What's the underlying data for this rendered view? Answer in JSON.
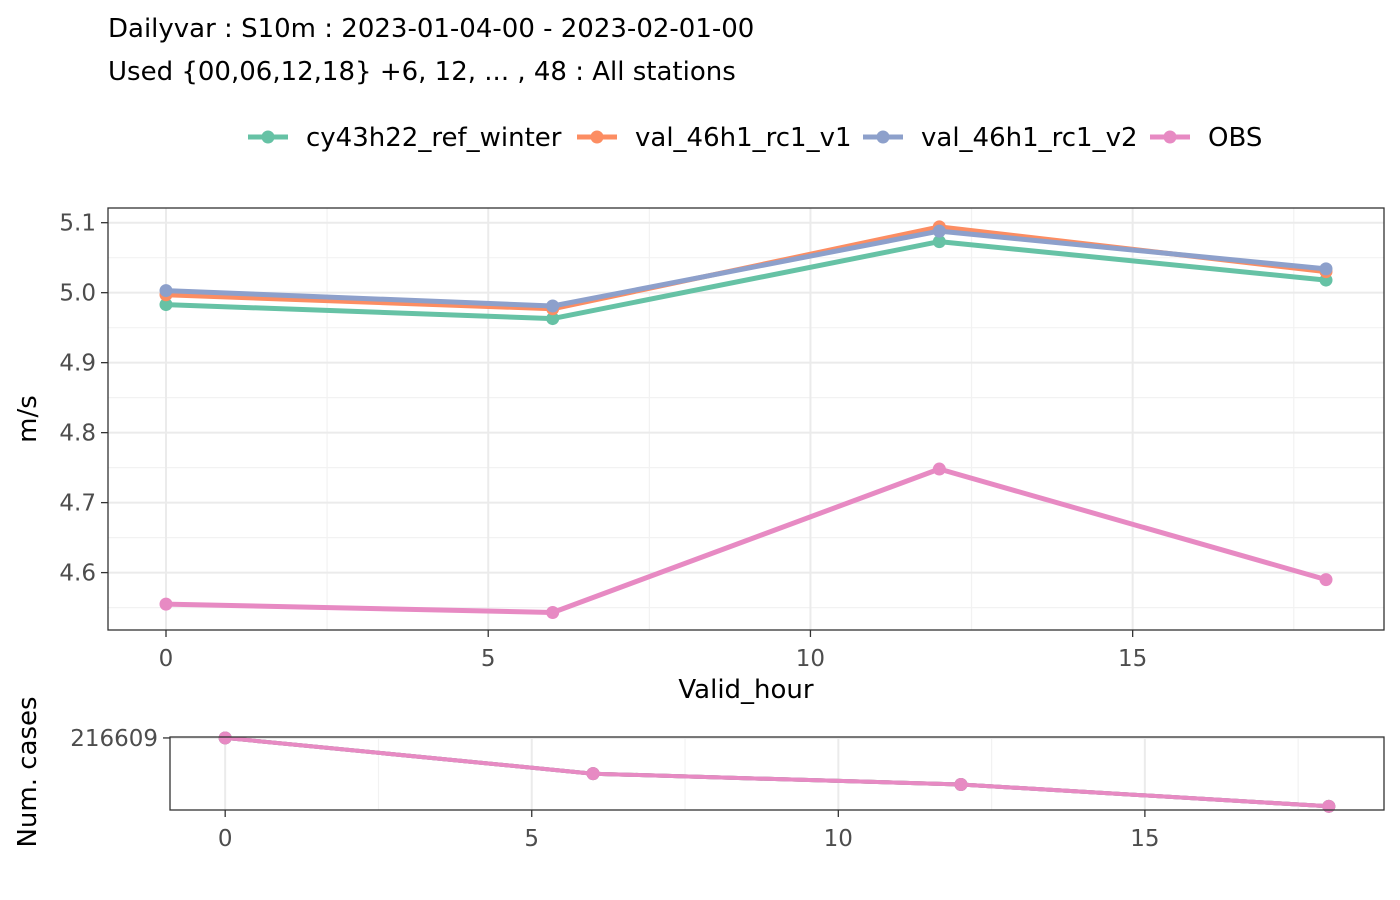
{
  "title": {
    "line1": "Dailyvar : S10m : 2023-01-04-00 - 2023-02-01-00",
    "line2": "Used {00,06,12,18} +6, 12, ... , 48 : All stations"
  },
  "chart_data": [
    {
      "type": "line",
      "x": [
        0,
        6,
        12,
        18
      ],
      "xlabel": "Valid_hour",
      "ylabel": "m/s",
      "xlim": [
        -0.9,
        18.9
      ],
      "ylim": [
        4.518,
        5.121
      ],
      "xticks": [
        0,
        5,
        10,
        15
      ],
      "yticks": [
        4.6,
        4.7,
        4.8,
        4.9,
        5.0,
        5.1
      ],
      "ytick_labels": [
        "4.6",
        "4.7",
        "4.8",
        "4.9",
        "5.0",
        "5.1"
      ],
      "grid": true,
      "legend_position": "top",
      "series": [
        {
          "name": "cy43h22_ref_winter",
          "color": "#66c2a5",
          "values": [
            4.983,
            4.963,
            5.073,
            5.018
          ]
        },
        {
          "name": "val_46h1_rc1_v1",
          "color": "#fc8d62",
          "values": [
            4.997,
            4.977,
            5.094,
            5.03
          ]
        },
        {
          "name": "val_46h1_rc1_v2",
          "color": "#8da0cb",
          "values": [
            5.003,
            4.981,
            5.088,
            5.034
          ]
        },
        {
          "name": "OBS",
          "color": "#e78ac3",
          "values": [
            4.555,
            4.543,
            4.748,
            4.59
          ]
        }
      ]
    },
    {
      "type": "line",
      "x": [
        0,
        6,
        12,
        18
      ],
      "xlabel": "",
      "ylabel": "Num. cases",
      "xlim": [
        -0.9,
        18.9
      ],
      "ylim": [
        214250,
        216640
      ],
      "xticks": [
        0,
        5,
        10,
        15
      ],
      "yticks": [
        216609
      ],
      "ytick_labels": [
        "216609"
      ],
      "grid": true,
      "series": [
        {
          "color": "#66c2a5",
          "values": [
            216609,
            215440,
            215085,
            214370
          ]
        },
        {
          "color": "#fc8d62",
          "values": [
            216609,
            215440,
            215085,
            214370
          ]
        },
        {
          "color": "#8da0cb",
          "values": [
            216609,
            215440,
            215085,
            214370
          ]
        },
        {
          "color": "#e78ac3",
          "values": [
            216609,
            215440,
            215085,
            214370
          ]
        }
      ]
    }
  ]
}
